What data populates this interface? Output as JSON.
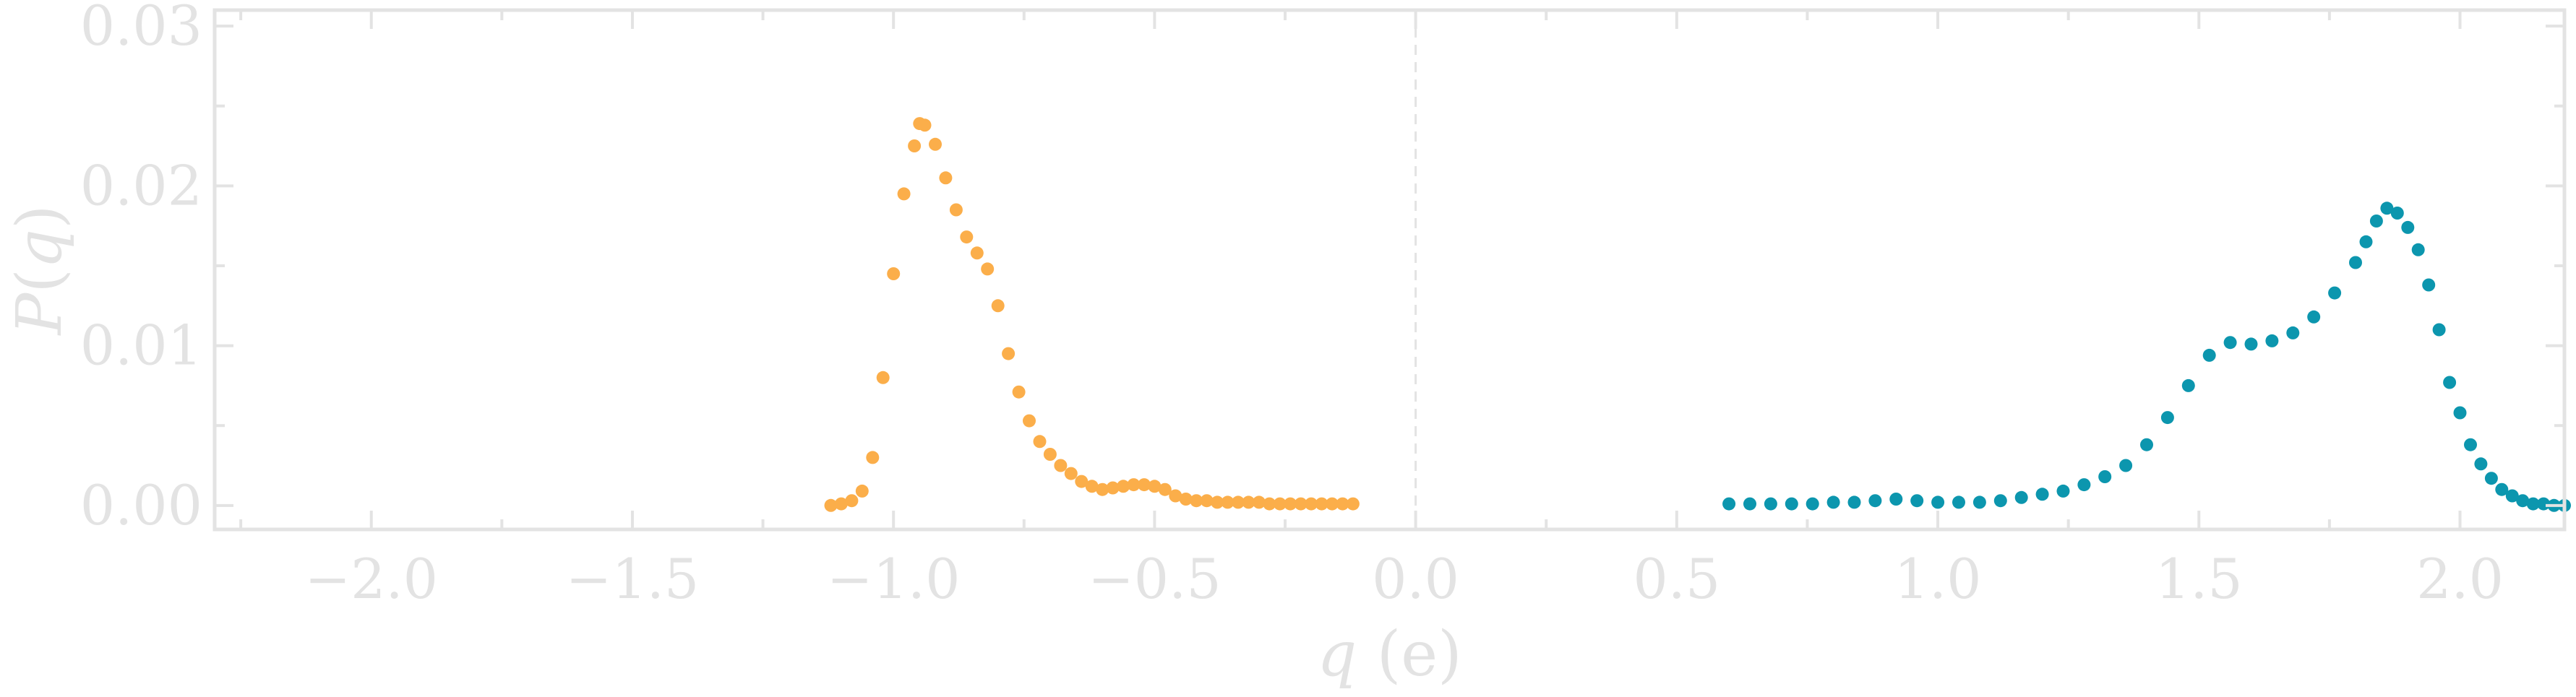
{
  "chart_data": {
    "type": "scatter",
    "xlabel": "q (e)",
    "ylabel": "P(q)",
    "xlim": [
      -2.3,
      2.2
    ],
    "ylim": [
      -0.0015,
      0.031
    ],
    "grid": false,
    "reference_line_x": 0.0,
    "x_ticks": [
      -2.0,
      -1.5,
      -1.0,
      -0.5,
      0.0,
      0.5,
      1.0,
      1.5,
      2.0
    ],
    "x_tick_labels": [
      "−2.0",
      "−1.5",
      "−1.0",
      "−0.5",
      "0.0",
      "0.5",
      "1.0",
      "1.5",
      "2.0"
    ],
    "y_ticks": [
      0.0,
      0.01,
      0.02,
      0.03
    ],
    "y_tick_labels": [
      "0.00",
      "0.01",
      "0.02",
      "0.03"
    ],
    "colors": {
      "axis": "#e3e3e3",
      "zero_line": "#e3e3e3"
    },
    "series": [
      {
        "color": "#FBAE4A",
        "x": [
          -1.12,
          -1.1,
          -1.08,
          -1.06,
          -1.04,
          -1.02,
          -1.0,
          -0.98,
          -0.96,
          -0.95,
          -0.94,
          -0.92,
          -0.9,
          -0.88,
          -0.86,
          -0.84,
          -0.82,
          -0.8,
          -0.78,
          -0.76,
          -0.74,
          -0.72,
          -0.7,
          -0.68,
          -0.66,
          -0.64,
          -0.62,
          -0.6,
          -0.58,
          -0.56,
          -0.54,
          -0.52,
          -0.5,
          -0.48,
          -0.46,
          -0.44,
          -0.42,
          -0.4,
          -0.38,
          -0.36,
          -0.34,
          -0.32,
          -0.3,
          -0.28,
          -0.26,
          -0.24,
          -0.22,
          -0.2,
          -0.18,
          -0.16,
          -0.14,
          -0.12
        ],
        "y": [
          0.0,
          0.0001,
          0.0003,
          0.0009,
          0.003,
          0.008,
          0.0145,
          0.0195,
          0.0225,
          0.0239,
          0.0238,
          0.0226,
          0.0205,
          0.0185,
          0.0168,
          0.0158,
          0.0148,
          0.0125,
          0.0095,
          0.0071,
          0.0053,
          0.004,
          0.0032,
          0.0025,
          0.002,
          0.0015,
          0.0012,
          0.001,
          0.0011,
          0.0012,
          0.0013,
          0.0013,
          0.0012,
          0.001,
          0.0006,
          0.0004,
          0.0003,
          0.0003,
          0.0002,
          0.0002,
          0.0002,
          0.0002,
          0.0002,
          0.0001,
          0.0001,
          0.0001,
          0.0001,
          0.0001,
          0.0001,
          0.0001,
          0.0001,
          0.0001
        ]
      },
      {
        "color": "#0C96AE",
        "x": [
          0.6,
          0.64,
          0.68,
          0.72,
          0.76,
          0.8,
          0.84,
          0.88,
          0.92,
          0.96,
          1.0,
          1.04,
          1.08,
          1.12,
          1.16,
          1.2,
          1.24,
          1.28,
          1.32,
          1.36,
          1.4,
          1.44,
          1.48,
          1.52,
          1.56,
          1.6,
          1.64,
          1.68,
          1.72,
          1.76,
          1.8,
          1.82,
          1.84,
          1.86,
          1.88,
          1.9,
          1.92,
          1.94,
          1.96,
          1.98,
          2.0,
          2.02,
          2.04,
          2.06,
          2.08,
          2.1,
          2.12,
          2.14,
          2.16,
          2.18,
          2.2
        ],
        "y": [
          0.0001,
          0.0001,
          0.0001,
          0.0001,
          0.0001,
          0.0002,
          0.0002,
          0.0003,
          0.0004,
          0.0003,
          0.0002,
          0.0002,
          0.0002,
          0.0003,
          0.0005,
          0.0007,
          0.0009,
          0.0013,
          0.0018,
          0.0025,
          0.0038,
          0.0055,
          0.0075,
          0.0094,
          0.0102,
          0.0101,
          0.0103,
          0.0108,
          0.0118,
          0.0133,
          0.0152,
          0.0165,
          0.0178,
          0.0186,
          0.0183,
          0.0174,
          0.016,
          0.0138,
          0.011,
          0.0077,
          0.0058,
          0.0038,
          0.0026,
          0.0017,
          0.001,
          0.0006,
          0.0003,
          0.0001,
          0.0001,
          0.0,
          0.0
        ]
      }
    ]
  }
}
